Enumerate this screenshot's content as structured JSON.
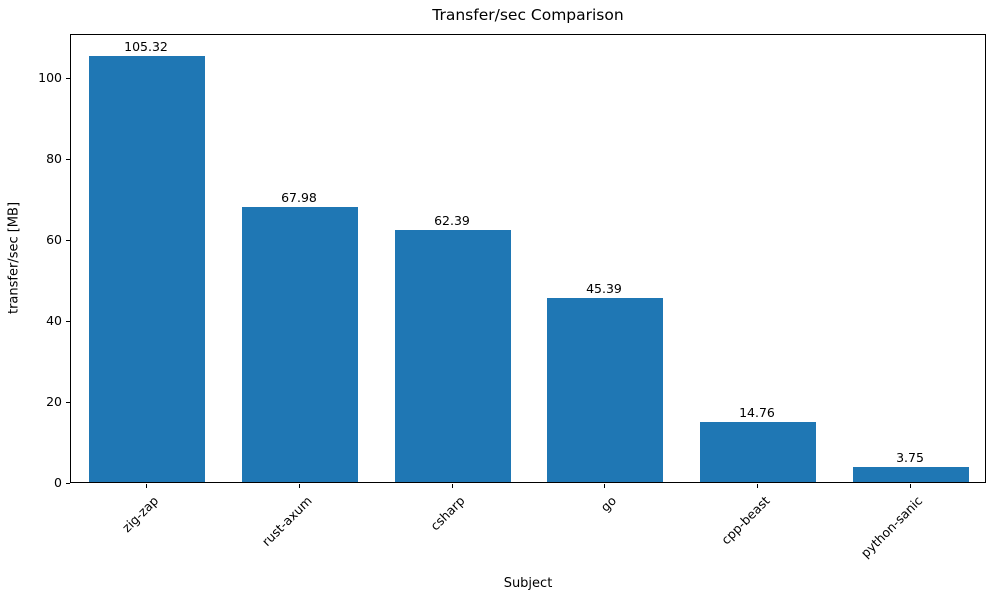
{
  "chart_data": {
    "type": "bar",
    "title": "Transfer/sec Comparison",
    "xlabel": "Subject",
    "ylabel": "transfer/sec [MB]",
    "categories": [
      "zig-zap",
      "rust-axum",
      "csharp",
      "go",
      "cpp-beast",
      "python-sanic"
    ],
    "values": [
      105.32,
      67.98,
      62.39,
      45.39,
      14.76,
      3.75
    ],
    "bar_value_labels": [
      "105.32",
      "67.98",
      "62.39",
      "45.39",
      "14.76",
      "3.75"
    ],
    "yticks": [
      0,
      20,
      40,
      60,
      80,
      100
    ],
    "ytick_labels": [
      "0",
      "20",
      "40",
      "60",
      "80",
      "100"
    ],
    "ylim": [
      0,
      111
    ],
    "bar_color": "#1f77b4",
    "grid": false,
    "legend": null,
    "bar_width_fraction": 0.76,
    "xtick_rotation_deg": 45
  }
}
